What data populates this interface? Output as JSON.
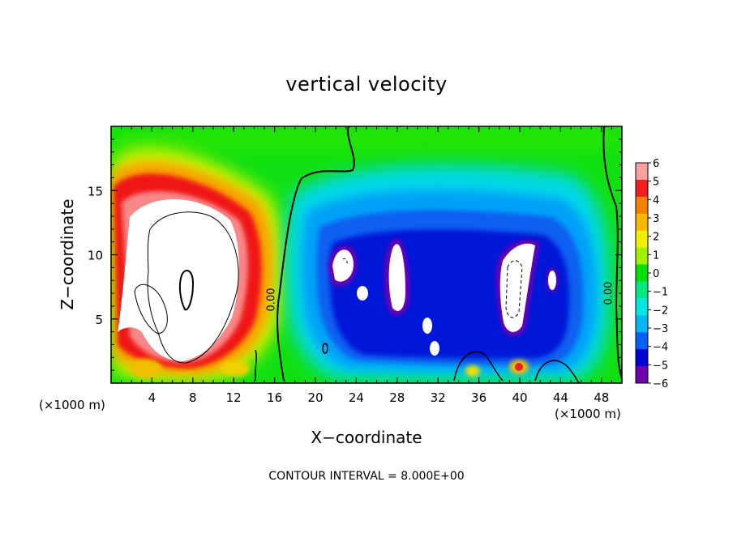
{
  "chart_data": {
    "type": "heatmap",
    "title": "vertical velocity",
    "xlabel": "X−coordinate",
    "ylabel": "Z−coordinate",
    "x_unit_label": "(×1000 m)",
    "x_unit_label_right": "(×1000 m)",
    "footer": "CONTOUR INTERVAL = 8.000E+00",
    "xlim": [
      0,
      50
    ],
    "ylim": [
      0,
      20
    ],
    "xticks": [
      4,
      8,
      12,
      16,
      20,
      24,
      28,
      32,
      36,
      40,
      44,
      48
    ],
    "yticks": [
      5,
      10,
      15
    ],
    "colorbar": {
      "range": [
        -6,
        6
      ],
      "ticks": [
        "6",
        "5",
        "4",
        "3",
        "2",
        "1",
        "0",
        "−1",
        "−2",
        "−3",
        "−4",
        "−5",
        "−6"
      ],
      "colors": [
        "#f8a0a0",
        "#f02020",
        "#f88000",
        "#f8b800",
        "#f0f000",
        "#a0f000",
        "#00e000",
        "#00e880",
        "#00e8e0",
        "#00b8f8",
        "#0060f8",
        "#0000d8",
        "#7000b0"
      ]
    },
    "contour_labels": [
      {
        "text": "0.00",
        "x": 16.0,
        "y": 6.5
      },
      {
        "text": "0.00",
        "x": 49.0,
        "y": 7.0
      }
    ]
  }
}
